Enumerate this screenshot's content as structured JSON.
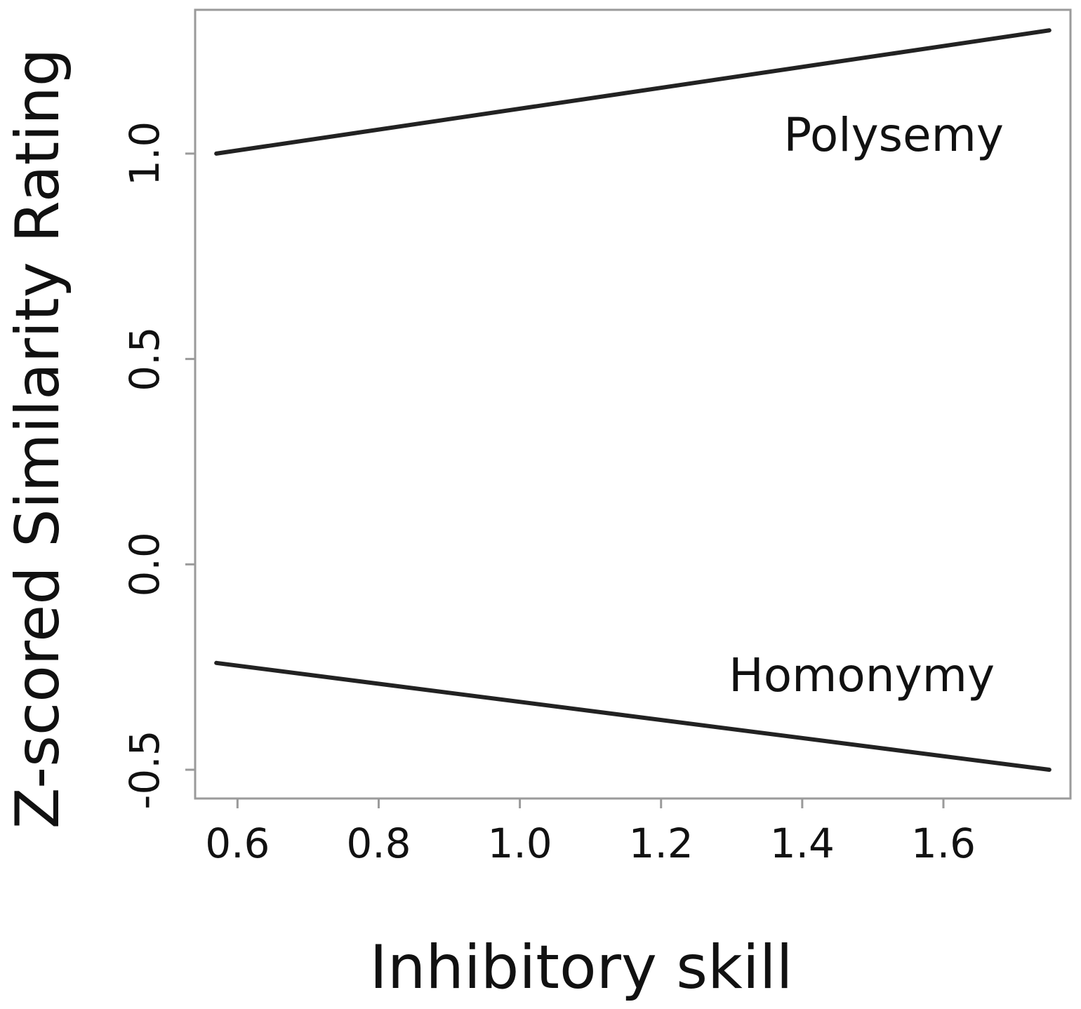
{
  "chart_data": {
    "type": "line",
    "title": "",
    "xlabel": "Inhibitory skill",
    "ylabel": "Z-scored Similarity Rating",
    "xlim": [
      0.54,
      1.78
    ],
    "ylim": [
      -0.57,
      1.35
    ],
    "xticks": [
      0.6,
      0.8,
      1.0,
      1.2,
      1.4,
      1.6
    ],
    "xtick_labels": [
      "0.6",
      "0.8",
      "1.0",
      "1.2",
      "1.4",
      "1.6"
    ],
    "yticks": [
      -0.5,
      0.0,
      0.5,
      1.0
    ],
    "ytick_labels": [
      "-0.5",
      "0.0",
      "0.5",
      "1.0"
    ],
    "grid": false,
    "legend": "none",
    "series": [
      {
        "name": "Polysemy",
        "x": [
          0.57,
          1.75
        ],
        "y": [
          1.0,
          1.3
        ],
        "color": "#222222"
      },
      {
        "name": "Homonymy",
        "x": [
          0.57,
          1.75
        ],
        "y": [
          -0.24,
          -0.5
        ],
        "color": "#222222"
      }
    ]
  }
}
